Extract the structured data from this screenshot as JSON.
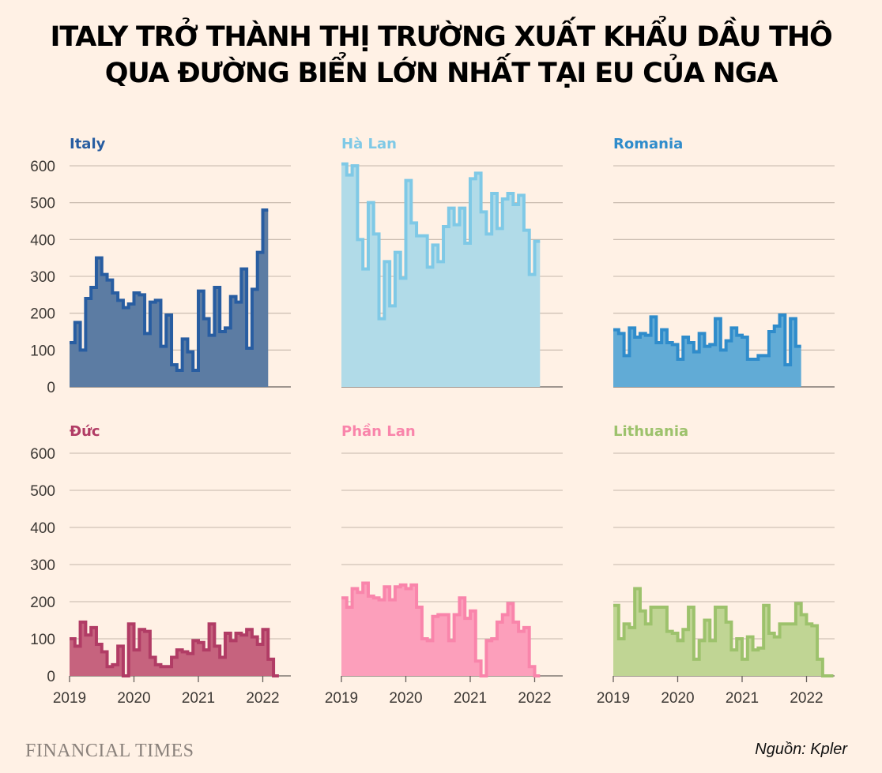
{
  "title_lines": [
    "ITALY TRỞ THÀNH THỊ TRƯỜNG XUẤT KHẨU DẦU THÔ",
    "QUA ĐƯỜNG BIỂN LỚN NHẤT TẠI EU CỦA NGA"
  ],
  "brand": "FINANCIAL TIMES",
  "source": "Nguồn: Kpler",
  "chart_data": {
    "type": "area",
    "layout": "small-multiples 3x2",
    "ylim": [
      0,
      600
    ],
    "yticks": [
      "0",
      "100",
      "200",
      "300",
      "400",
      "500",
      "600"
    ],
    "xticks": [
      "2019",
      "2020",
      "2021",
      "2022"
    ],
    "x_start_month": "2019-01",
    "series": [
      {
        "name": "Italy",
        "color": "#285da1",
        "fill": "#5c7ca3",
        "values": [
          120,
          175,
          100,
          240,
          270,
          350,
          305,
          290,
          255,
          235,
          215,
          225,
          255,
          250,
          145,
          230,
          235,
          110,
          195,
          60,
          45,
          130,
          95,
          45,
          260,
          185,
          140,
          270,
          150,
          160,
          245,
          230,
          320,
          105,
          265,
          365,
          480
        ]
      },
      {
        "name": "Hà Lan",
        "color": "#7fc9e6",
        "fill": "#b1dbe8",
        "values": [
          605,
          575,
          600,
          400,
          320,
          500,
          415,
          185,
          340,
          220,
          365,
          295,
          560,
          445,
          410,
          410,
          325,
          385,
          340,
          435,
          485,
          440,
          485,
          390,
          565,
          580,
          475,
          415,
          525,
          430,
          510,
          525,
          495,
          520,
          425,
          305,
          395
        ]
      },
      {
        "name": "Romania",
        "color": "#2f8ccb",
        "fill": "#61abd6",
        "values": [
          155,
          145,
          85,
          160,
          135,
          145,
          140,
          190,
          120,
          155,
          120,
          115,
          75,
          135,
          120,
          95,
          145,
          110,
          115,
          185,
          100,
          125,
          160,
          140,
          135,
          75,
          75,
          85,
          85,
          150,
          165,
          195,
          60,
          185,
          110
        ]
      },
      {
        "name": "Đức",
        "color": "#b13c65",
        "fill": "#c6637e",
        "values": [
          100,
          80,
          145,
          110,
          130,
          85,
          65,
          25,
          30,
          80,
          0,
          140,
          70,
          125,
          120,
          50,
          30,
          25,
          25,
          50,
          70,
          65,
          60,
          95,
          90,
          70,
          140,
          80,
          50,
          115,
          95,
          115,
          110,
          125,
          105,
          85,
          125,
          45,
          0
        ]
      },
      {
        "name": "Phần Lan",
        "color": "#f985ab",
        "fill": "#fc9fbb",
        "values": [
          210,
          185,
          235,
          225,
          250,
          215,
          210,
          205,
          240,
          205,
          240,
          245,
          235,
          245,
          185,
          100,
          95,
          160,
          165,
          165,
          95,
          165,
          210,
          155,
          175,
          40,
          0,
          95,
          100,
          145,
          165,
          195,
          145,
          120,
          130,
          25,
          0
        ]
      },
      {
        "name": "Lithuania",
        "color": "#9dc26c",
        "fill": "#c0d594",
        "values": [
          190,
          100,
          140,
          130,
          235,
          175,
          140,
          185,
          185,
          185,
          120,
          115,
          95,
          125,
          185,
          45,
          95,
          150,
          95,
          185,
          185,
          145,
          70,
          100,
          45,
          105,
          70,
          75,
          190,
          115,
          105,
          140,
          140,
          140,
          195,
          165,
          140,
          135,
          45,
          0,
          0
        ]
      }
    ]
  }
}
